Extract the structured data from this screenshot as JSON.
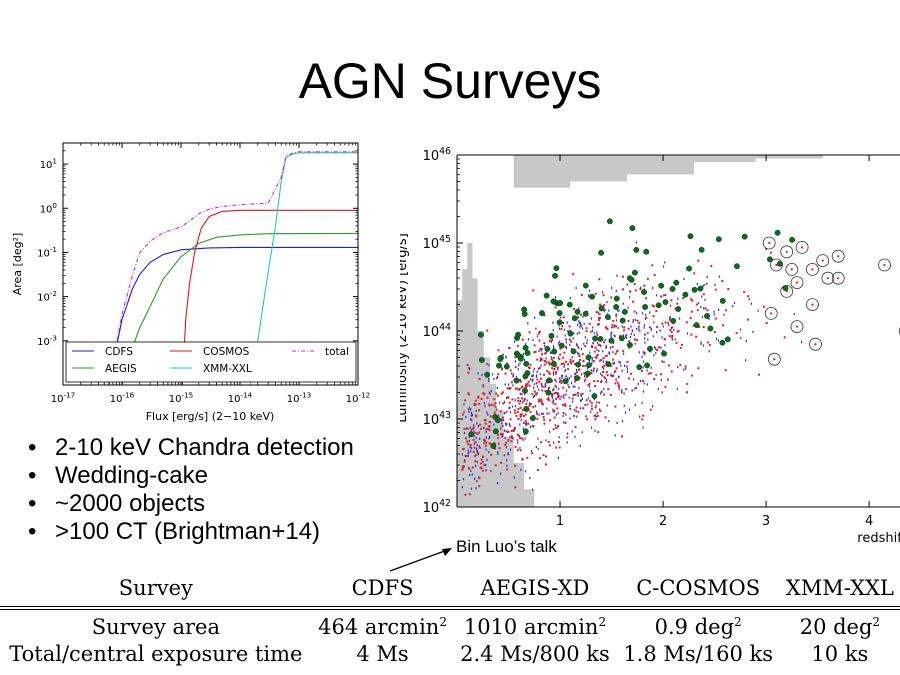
{
  "slide": {
    "title": "AGN Surveys",
    "bullets": [
      "2-10 keV Chandra detection",
      "Wedding-cake",
      "~2000 objects",
      ">100 CT (Brightman+14)"
    ],
    "arrow_note": "Bin Luo’s talk"
  },
  "chart_data": [
    {
      "type": "line",
      "xlabel": "Flux [erg/s] (2−10 keV)",
      "ylabel": "Area [deg²]",
      "x_scale": "log",
      "y_scale": "log",
      "xlim": [
        1e-17,
        1e-12
      ],
      "ylim": [
        0.0001,
        30
      ],
      "xticks": [
        "10-17",
        "10-16",
        "10-15",
        "10-14",
        "10-13",
        "10-12"
      ],
      "yticks": [
        "10-3",
        "10-2",
        "10-1",
        "100",
        "101"
      ],
      "legend_position": "bottom",
      "series": [
        {
          "name": "CDFS",
          "color": "#1f1fd8",
          "style": "solid",
          "points": [
            [
              6e-17,
              0.0001
            ],
            [
              8e-17,
              0.0007
            ],
            [
              1e-16,
              0.003
            ],
            [
              1.5e-16,
              0.015
            ],
            [
              2e-16,
              0.032
            ],
            [
              3e-16,
              0.06
            ],
            [
              5e-16,
              0.09
            ],
            [
              1e-15,
              0.115
            ],
            [
              3e-15,
              0.127
            ],
            [
              1e-14,
              0.13
            ],
            [
              1e-12,
              0.13
            ]
          ]
        },
        {
          "name": "AEGIS",
          "color": "#2e9a2e",
          "style": "solid",
          "points": [
            [
              1e-16,
              0.0001
            ],
            [
              1.5e-16,
              0.0007
            ],
            [
              2e-16,
              0.002
            ],
            [
              3e-16,
              0.006
            ],
            [
              5e-16,
              0.025
            ],
            [
              1e-15,
              0.08
            ],
            [
              2e-15,
              0.16
            ],
            [
              4e-15,
              0.22
            ],
            [
              1e-14,
              0.25
            ],
            [
              3e-14,
              0.265
            ],
            [
              1e-12,
              0.27
            ]
          ]
        },
        {
          "name": "COSMOS",
          "color": "#e01818",
          "style": "solid",
          "points": [
            [
              1.05e-15,
              0.0001
            ],
            [
              1.2e-15,
              0.003
            ],
            [
              1.4e-15,
              0.02
            ],
            [
              1.7e-15,
              0.1
            ],
            [
              2.2e-15,
              0.35
            ],
            [
              3e-15,
              0.65
            ],
            [
              5e-15,
              0.85
            ],
            [
              1e-14,
              0.9
            ],
            [
              1e-12,
              0.9
            ]
          ]
        },
        {
          "name": "XMM-XXL",
          "color": "#27c4c4",
          "style": "solid",
          "points": [
            [
              1.5e-14,
              0.0001
            ],
            [
              2e-14,
              0.001
            ],
            [
              2.8e-14,
              0.02
            ],
            [
              4e-14,
              0.4
            ],
            [
              5e-14,
              4
            ],
            [
              6e-14,
              14
            ],
            [
              8e-14,
              17
            ],
            [
              1e-13,
              18
            ],
            [
              1e-12,
              18
            ]
          ]
        },
        {
          "name": "total",
          "color": "#c030c0",
          "style": "dashdot",
          "points": [
            [
              6e-17,
              0.0001
            ],
            [
              8e-17,
              0.0008
            ],
            [
              1e-16,
              0.004
            ],
            [
              1.5e-16,
              0.03
            ],
            [
              2e-16,
              0.1
            ],
            [
              3e-16,
              0.18
            ],
            [
              5e-16,
              0.28
            ],
            [
              1e-15,
              0.38
            ],
            [
              1.5e-15,
              0.55
            ],
            [
              2e-15,
              0.75
            ],
            [
              3e-15,
              0.95
            ],
            [
              5e-15,
              1.1
            ],
            [
              1e-14,
              1.2
            ],
            [
              3e-14,
              1.3
            ],
            [
              5e-14,
              5
            ],
            [
              6e-14,
              15
            ],
            [
              8e-14,
              18
            ],
            [
              1e-13,
              19
            ],
            [
              1e-12,
              19
            ]
          ]
        }
      ],
      "legend": [
        {
          "name": "CDFS",
          "color": "#1f1fd8",
          "style": "solid"
        },
        {
          "name": "COSMOS",
          "color": "#e01818",
          "style": "solid"
        },
        {
          "name": "total",
          "color": "#c030c0",
          "style": "dashdot"
        },
        {
          "name": "AEGIS",
          "color": "#2e9a2e",
          "style": "solid"
        },
        {
          "name": "XMM-XXL",
          "color": "#27c4c4",
          "style": "solid"
        }
      ]
    },
    {
      "type": "scatter",
      "xlabel": "redshift",
      "ylabel": "Luminosity (2-10 keV) [erg/s]",
      "y_scale": "log",
      "xlim": [
        0,
        4.3
      ],
      "ylim": [
        1e+42,
        1e+46
      ],
      "xticks": [
        "1",
        "2",
        "3",
        "4"
      ],
      "yticks": [
        "1042",
        "1043",
        "1044",
        "1045",
        "1046"
      ],
      "colors": {
        "blue_points": "#2233dd",
        "red_points": "#e02020",
        "compton_thick": "#0c6a1c",
        "shaded_region": "#c8c8c8"
      },
      "approx_point_count": 2000
    }
  ],
  "table": {
    "headers": [
      "Survey",
      "CDFS",
      "AEGIS-XD",
      "C-COSMOS",
      "XMM-XXL"
    ],
    "rows": [
      {
        "label": "Survey area",
        "cells": [
          {
            "value": "464 arcmin",
            "sup": "2"
          },
          {
            "value": "1010 arcmin",
            "sup": "2"
          },
          {
            "value": "0.9 deg",
            "sup": "2"
          },
          {
            "value": "20 deg",
            "sup": "2"
          }
        ]
      },
      {
        "label": "Total/central exposure time",
        "cells": [
          {
            "value": "4 Ms",
            "sup": ""
          },
          {
            "value": "2.4 Ms/800 ks",
            "sup": ""
          },
          {
            "value": "1.8 Ms/160 ks",
            "sup": ""
          },
          {
            "value": "10 ks",
            "sup": ""
          }
        ]
      }
    ]
  }
}
